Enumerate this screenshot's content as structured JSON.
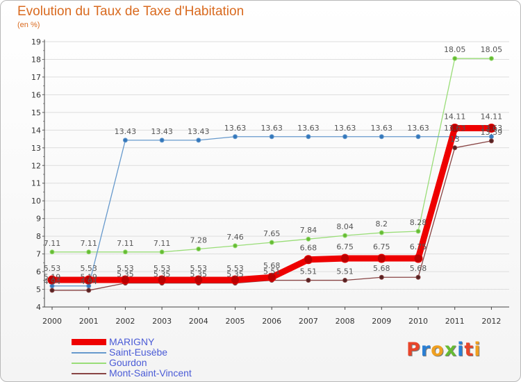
{
  "title": "Evolution du Taux de Taxe d'Habitation",
  "subtitle": "(en %)",
  "brand": "Proxiti",
  "colors": {
    "title": "#d96a1f",
    "grid": "#dddddd",
    "legend_text": "#4a5bd6",
    "brand_letters": [
      "#e8452a",
      "#2a7fd4",
      "#f0a020",
      "#66bb33",
      "#2a7fd4",
      "#e8452a",
      "#f0a020"
    ]
  },
  "chart_data": {
    "type": "line",
    "title": "Evolution du Taux de Taxe d'Habitation",
    "ylabel": "(en %)",
    "xlabel": "",
    "x": [
      "2000",
      "2001",
      "2002",
      "2003",
      "2004",
      "2005",
      "2006",
      "2007",
      "2008",
      "2009",
      "2010",
      "2011",
      "2012"
    ],
    "ylim": [
      4,
      19
    ],
    "yticks": [
      "4",
      "5",
      "6",
      "7",
      "8",
      "9",
      "10",
      "11",
      "12",
      "13",
      "14",
      "15",
      "16",
      "17",
      "18",
      "19"
    ],
    "grid": true,
    "legend_position": "bottom-left",
    "series": [
      {
        "name": "MARIGNY",
        "color": "#ee0000",
        "marker": "#bb0000",
        "values": [
          5.53,
          5.53,
          5.53,
          5.53,
          5.53,
          5.53,
          5.68,
          6.68,
          6.75,
          6.75,
          6.75,
          14.11,
          14.11
        ],
        "labels": [
          "5.53",
          "5.53",
          "5.53",
          "5.53",
          "5.53",
          "5.53",
          "5.68",
          "6.68",
          "6.75",
          "6.75",
          "6.75",
          "14.11",
          "14.11"
        ]
      },
      {
        "name": "Saint-Eusèbe",
        "color": "#6699cc",
        "marker": "#3377bb",
        "values": [
          5.19,
          5.19,
          13.43,
          13.43,
          13.43,
          13.63,
          13.63,
          13.63,
          13.63,
          13.63,
          13.63,
          13.63,
          13.63
        ],
        "labels": [
          "5.19",
          "5.19",
          "13.43",
          "13.43",
          "13.43",
          "13.63",
          "13.63",
          "13.63",
          "13.63",
          "13.63",
          "13.63",
          "13.63",
          "13.63"
        ]
      },
      {
        "name": "Gourdon",
        "color": "#99dd77",
        "marker": "#66bb33",
        "values": [
          7.11,
          7.11,
          7.11,
          7.11,
          7.28,
          7.46,
          7.65,
          7.84,
          8.04,
          8.2,
          8.28,
          18.05,
          18.05
        ],
        "labels": [
          "7.11",
          "7.11",
          "7.11",
          "7.11",
          "7.28",
          "7.46",
          "7.65",
          "7.84",
          "8.04",
          "8.2",
          "8.28",
          "18.05",
          "18.05"
        ]
      },
      {
        "name": "Mont-Saint-Vincent",
        "color": "#884444",
        "marker": "#552222",
        "values": [
          4.94,
          4.94,
          5.35,
          5.35,
          5.35,
          5.35,
          5.51,
          5.51,
          5.51,
          5.68,
          5.68,
          13,
          13.39
        ],
        "labels": [
          "4.94",
          "4.94",
          "5.35",
          "5.35",
          "5.35",
          "5.35",
          "5.51",
          "5.51",
          "5.51",
          "5.68",
          "5.68",
          "13",
          "13.39"
        ]
      }
    ]
  }
}
